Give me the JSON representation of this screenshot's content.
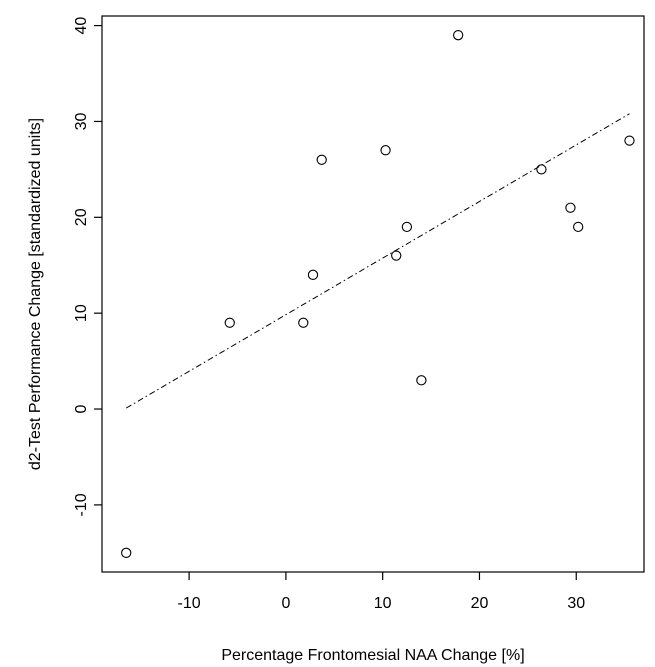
{
  "chart_data": {
    "type": "scatter",
    "xlabel": "Percentage Frontomesial NAA Change    [%]",
    "ylabel": "d2-Test  Performance  Change   [standardized units]",
    "xlim": [
      -19,
      37
    ],
    "ylim": [
      -17,
      41
    ],
    "xticks": [
      -10,
      0,
      10,
      20,
      30
    ],
    "yticks": [
      -10,
      0,
      10,
      20,
      30,
      40
    ],
    "points": [
      {
        "x": -16.5,
        "y": -15
      },
      {
        "x": -5.8,
        "y": 9
      },
      {
        "x": 1.8,
        "y": 9
      },
      {
        "x": 2.8,
        "y": 14
      },
      {
        "x": 3.7,
        "y": 26
      },
      {
        "x": 10.3,
        "y": 27
      },
      {
        "x": 11.4,
        "y": 16
      },
      {
        "x": 12.5,
        "y": 19
      },
      {
        "x": 14.0,
        "y": 3
      },
      {
        "x": 17.8,
        "y": 39
      },
      {
        "x": 26.4,
        "y": 25
      },
      {
        "x": 29.4,
        "y": 21
      },
      {
        "x": 30.2,
        "y": 19
      },
      {
        "x": 35.5,
        "y": 28
      }
    ],
    "trendline": {
      "x": [
        -16.5,
        35.5
      ],
      "y": [
        0.1,
        30.8
      ]
    },
    "point_marker": "open-circle",
    "line_style": "dash-dot",
    "grid": false,
    "legend": "none",
    "colors": {
      "points": "#000000",
      "line": "#000000",
      "axes": "#000000"
    }
  }
}
